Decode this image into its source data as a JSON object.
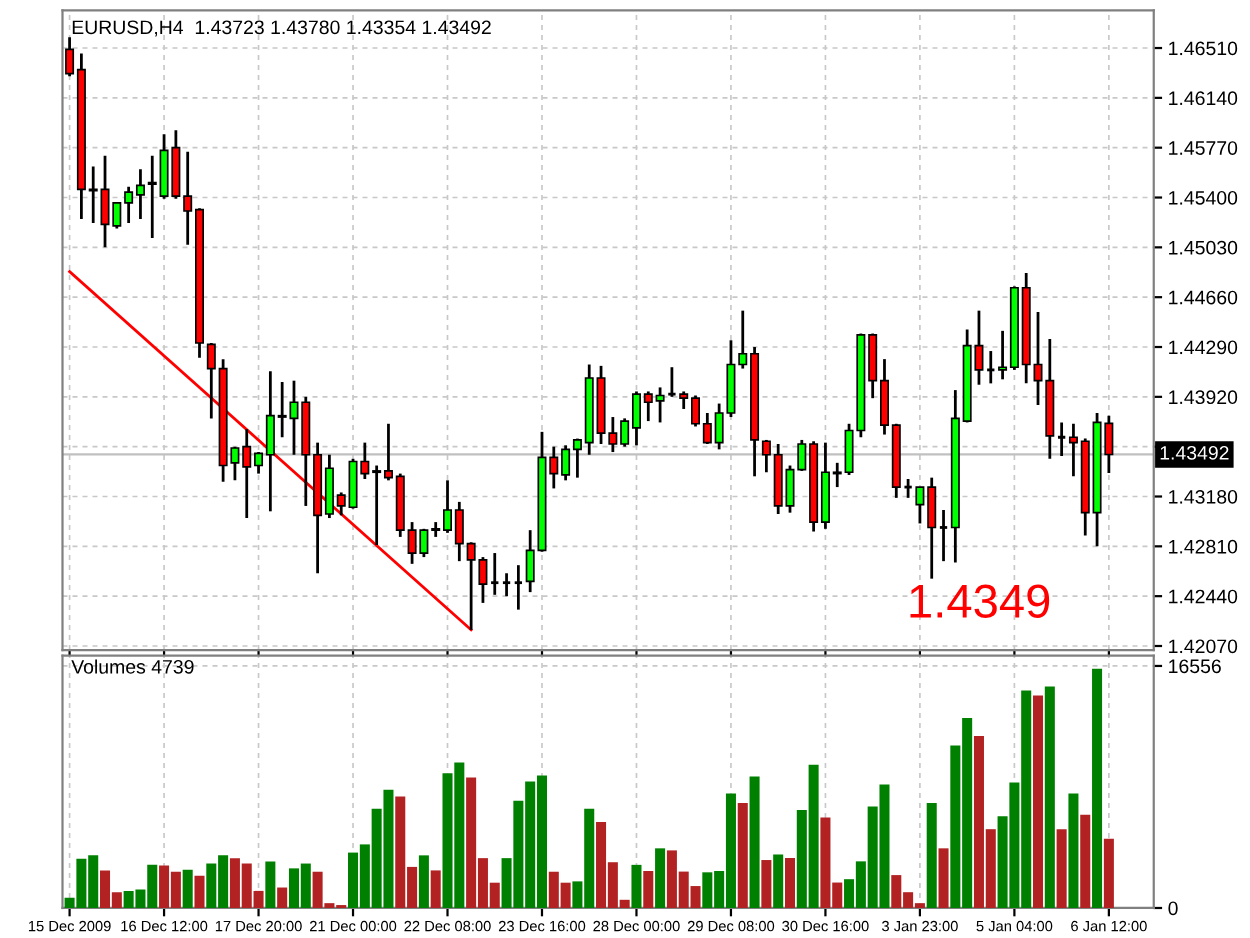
{
  "chart_data": [
    {
      "type": "candlestick",
      "title": "EURUSD,H4  1.43723 1.43780 1.43354 1.43492",
      "categories": [
        null,
        null,
        null,
        null,
        null,
        null,
        null,
        null,
        null,
        null,
        null,
        null,
        null,
        null,
        null,
        null,
        null,
        null,
        null,
        null,
        null,
        null,
        null,
        null,
        null,
        null,
        null,
        null,
        null,
        null,
        null,
        null,
        null,
        null,
        null,
        null,
        null,
        null,
        null,
        null,
        null,
        null,
        null,
        null,
        null,
        null,
        null,
        null,
        null,
        null,
        null,
        null,
        null,
        null,
        null,
        null,
        null,
        null,
        null,
        null,
        null,
        null,
        null,
        null,
        null,
        null,
        null,
        null,
        null,
        null,
        null,
        null,
        null,
        null,
        null,
        null,
        null,
        null,
        null,
        null,
        null,
        null,
        null,
        null,
        null,
        null,
        null,
        null,
        null
      ],
      "ohlc": [
        [
          1.465,
          1.4659,
          1.463,
          1.4632
        ],
        [
          1.4635,
          1.4647,
          1.4524,
          1.4546
        ],
        [
          1.4546,
          1.4563,
          1.4521,
          1.4545
        ],
        [
          1.4546,
          1.4571,
          1.4503,
          1.452
        ],
        [
          1.4519,
          1.4536,
          1.4517,
          1.4536
        ],
        [
          1.4536,
          1.4548,
          1.4521,
          1.4544
        ],
        [
          1.4542,
          1.4561,
          1.4524,
          1.4549
        ],
        [
          1.455,
          1.4571,
          1.451,
          1.4551
        ],
        [
          1.4541,
          1.4587,
          1.4539,
          1.4575
        ],
        [
          1.4577,
          1.459,
          1.4539,
          1.4541
        ],
        [
          1.4541,
          1.4574,
          1.4505,
          1.453
        ],
        [
          1.4531,
          1.4532,
          1.4421,
          1.4432
        ],
        [
          1.4431,
          1.4432,
          1.4376,
          1.4413
        ],
        [
          1.4413,
          1.442,
          1.4329,
          1.4341
        ],
        [
          1.4343,
          1.4355,
          1.433,
          1.4354
        ],
        [
          1.4355,
          1.4368,
          1.4302,
          1.434
        ],
        [
          1.4341,
          1.4351,
          1.4335,
          1.435
        ],
        [
          1.4349,
          1.4411,
          1.4307,
          1.4378
        ],
        [
          1.4377,
          1.4403,
          1.4362,
          1.4378
        ],
        [
          1.4376,
          1.4404,
          1.4349,
          1.4388
        ],
        [
          1.4388,
          1.4392,
          1.4311,
          1.4349
        ],
        [
          1.4349,
          1.4358,
          1.4261,
          1.4304
        ],
        [
          1.4305,
          1.4349,
          1.4302,
          1.4339
        ],
        [
          1.4319,
          1.4321,
          1.4304,
          1.4311
        ],
        [
          1.431,
          1.4346,
          1.4309,
          1.4344
        ],
        [
          1.4344,
          1.4358,
          1.4331,
          1.4335
        ],
        [
          1.4337,
          1.4341,
          1.4282,
          1.4336
        ],
        [
          1.4337,
          1.4372,
          1.433,
          1.4332
        ],
        [
          1.4333,
          1.4335,
          1.4288,
          1.4293
        ],
        [
          1.4293,
          1.4299,
          1.4268,
          1.4276
        ],
        [
          1.4276,
          1.4294,
          1.4273,
          1.4293
        ],
        [
          1.4293,
          1.4299,
          1.4288,
          1.4294
        ],
        [
          1.4293,
          1.433,
          1.4291,
          1.4308
        ],
        [
          1.4308,
          1.4314,
          1.427,
          1.4283
        ],
        [
          1.4283,
          1.4284,
          1.4219,
          1.4271
        ],
        [
          1.4271,
          1.4273,
          1.4239,
          1.4253
        ],
        [
          1.4254,
          1.4276,
          1.4245,
          1.4254
        ],
        [
          1.4254,
          1.4261,
          1.4244,
          1.4254
        ],
        [
          1.4254,
          1.4267,
          1.4234,
          1.4254
        ],
        [
          1.4255,
          1.4293,
          1.4247,
          1.4278
        ],
        [
          1.4278,
          1.4366,
          1.4277,
          1.4347
        ],
        [
          1.4347,
          1.4355,
          1.4324,
          1.4335
        ],
        [
          1.4334,
          1.4356,
          1.433,
          1.4353
        ],
        [
          1.4353,
          1.4361,
          1.4332,
          1.436
        ],
        [
          1.4358,
          1.4416,
          1.4349,
          1.4406
        ],
        [
          1.4406,
          1.4415,
          1.4357,
          1.4365
        ],
        [
          1.4365,
          1.4377,
          1.4351,
          1.4357
        ],
        [
          1.4357,
          1.4376,
          1.4355,
          1.4374
        ],
        [
          1.4369,
          1.4396,
          1.4356,
          1.4394
        ],
        [
          1.4394,
          1.4396,
          1.4374,
          1.4388
        ],
        [
          1.4389,
          1.4399,
          1.4373,
          1.4393
        ],
        [
          1.4394,
          1.4414,
          1.4392,
          1.4394
        ],
        [
          1.4394,
          1.4396,
          1.4383,
          1.4391
        ],
        [
          1.4391,
          1.4393,
          1.437,
          1.4372
        ],
        [
          1.4372,
          1.438,
          1.4357,
          1.4358
        ],
        [
          1.4358,
          1.4387,
          1.4353,
          1.438
        ],
        [
          1.438,
          1.4434,
          1.4377,
          1.4416
        ],
        [
          1.4416,
          1.4456,
          1.4413,
          1.4424
        ],
        [
          1.4424,
          1.4429,
          1.4333,
          1.436
        ],
        [
          1.4359,
          1.436,
          1.4336,
          1.4349
        ],
        [
          1.4349,
          1.4357,
          1.4305,
          1.4311
        ],
        [
          1.4311,
          1.4341,
          1.4306,
          1.4338
        ],
        [
          1.4338,
          1.436,
          1.4337,
          1.4357
        ],
        [
          1.4357,
          1.4359,
          1.4292,
          1.4299
        ],
        [
          1.4299,
          1.4358,
          1.4294,
          1.4336
        ],
        [
          1.4335,
          1.4343,
          1.4325,
          1.4336
        ],
        [
          1.4336,
          1.4372,
          1.4334,
          1.4367
        ],
        [
          1.4367,
          1.4439,
          1.4362,
          1.4438
        ],
        [
          1.4438,
          1.4439,
          1.4391,
          1.4404
        ],
        [
          1.4404,
          1.442,
          1.4364,
          1.4371
        ],
        [
          1.4371,
          1.4372,
          1.4317,
          1.4325
        ],
        [
          1.4325,
          1.4331,
          1.4317,
          1.4325
        ],
        [
          1.4312,
          1.4325,
          1.4298,
          1.4325
        ],
        [
          1.4325,
          1.4332,
          1.4257,
          1.4295
        ],
        [
          1.4295,
          1.4308,
          1.427,
          1.4295
        ],
        [
          1.4295,
          1.4397,
          1.4269,
          1.4376
        ],
        [
          1.4374,
          1.4442,
          1.4373,
          1.443
        ],
        [
          1.443,
          1.4456,
          1.4401,
          1.4412
        ],
        [
          1.4412,
          1.4426,
          1.4402,
          1.4412
        ],
        [
          1.4412,
          1.4441,
          1.4405,
          1.4414
        ],
        [
          1.4414,
          1.4474,
          1.4412,
          1.4473
        ],
        [
          1.4473,
          1.4484,
          1.4402,
          1.4416
        ],
        [
          1.4416,
          1.4455,
          1.4386,
          1.4404
        ],
        [
          1.4404,
          1.4435,
          1.4346,
          1.4363
        ],
        [
          1.4362,
          1.4373,
          1.4348,
          1.4362
        ],
        [
          1.4362,
          1.4372,
          1.4333,
          1.4358
        ],
        [
          1.4359,
          1.4361,
          1.4289,
          1.4306
        ],
        [
          1.4306,
          1.438,
          1.4281,
          1.4373
        ],
        [
          1.43723,
          1.4378,
          1.43354,
          1.43492
        ]
      ],
      "colors": [
        "#ff0000",
        "#ff0000",
        "#ff0000",
        "#ff0000",
        "#00ff00",
        "#00ff00",
        "#00ff00",
        "#00ff00",
        "#00ff00",
        "#ff0000",
        "#ff0000",
        "#ff0000",
        "#ff0000",
        "#ff0000",
        "#00ff00",
        "#ff0000",
        "#00ff00",
        "#00ff00",
        "#00ff00",
        "#00ff00",
        "#ff0000",
        "#ff0000",
        "#00ff00",
        "#ff0000",
        "#00ff00",
        "#ff0000",
        "#ff0000",
        "#ff0000",
        "#ff0000",
        "#ff0000",
        "#00ff00",
        "#00ff00",
        "#00ff00",
        "#ff0000",
        "#ff0000",
        "#ff0000",
        "#000000",
        "#000000",
        "#000000",
        "#00ff00",
        "#00ff00",
        "#ff0000",
        "#00ff00",
        "#00ff00",
        "#00ff00",
        "#ff0000",
        "#ff0000",
        "#00ff00",
        "#00ff00",
        "#ff0000",
        "#00ff00",
        "#000000",
        "#ff0000",
        "#ff0000",
        "#ff0000",
        "#00ff00",
        "#00ff00",
        "#00ff00",
        "#ff0000",
        "#ff0000",
        "#ff0000",
        "#00ff00",
        "#00ff00",
        "#ff0000",
        "#00ff00",
        "#00ff00",
        "#00ff00",
        "#00ff00",
        "#ff0000",
        "#ff0000",
        "#ff0000",
        "#000000",
        "#00ff00",
        "#ff0000",
        "#000000",
        "#00ff00",
        "#00ff00",
        "#ff0000",
        "#000000",
        "#00ff00",
        "#00ff00",
        "#ff0000",
        "#ff0000",
        "#ff0000",
        "#000000",
        "#ff0000",
        "#ff0000",
        "#00ff00",
        "#ff0000"
      ],
      "series": [
        {
          "type": "line",
          "values": [
            1.4485,
            null,
            null,
            null,
            null,
            null,
            null,
            null,
            null,
            null,
            null,
            null,
            null,
            null,
            null,
            null,
            null,
            null,
            null,
            null,
            null,
            null,
            null,
            null,
            null,
            null,
            null,
            null,
            null,
            null,
            null,
            null,
            null,
            null,
            1.4219,
            null,
            null,
            null,
            null,
            null,
            null,
            null,
            null,
            null,
            null,
            null,
            null,
            null,
            null,
            null,
            null,
            null,
            null,
            null,
            null,
            null,
            null,
            null,
            null,
            null,
            null,
            null,
            null,
            null,
            null,
            null,
            null,
            null,
            null,
            null,
            null,
            null,
            null,
            null,
            null,
            null,
            null,
            null,
            null,
            null,
            null,
            null,
            null,
            null,
            null,
            null,
            null,
            null,
            null
          ],
          "color": "#ff0000"
        }
      ],
      "ylim": [
        1.4204,
        1.4679
      ],
      "yticks": [
        {
          "value": 1.4207,
          "label": "1.42070"
        },
        {
          "value": 1.4244,
          "label": "1.42440"
        },
        {
          "value": 1.4281,
          "label": "1.42810"
        },
        {
          "value": 1.4318,
          "label": "1.43180"
        },
        {
          "value": 1.4355,
          "label": null
        },
        {
          "value": 1.4392,
          "label": "1.43920"
        },
        {
          "value": 1.4429,
          "label": "1.44290"
        },
        {
          "value": 1.4466,
          "label": "1.44660"
        },
        {
          "value": 1.4503,
          "label": "1.45030"
        },
        {
          "value": 1.454,
          "label": "1.45400"
        },
        {
          "value": 1.4577,
          "label": "1.45770"
        },
        {
          "value": 1.4614,
          "label": "1.46140"
        },
        {
          "value": 1.4651,
          "label": "1.46510"
        }
      ],
      "ref_lines": [
        {
          "axis": "y",
          "value": 1.43492,
          "label": "1.43492",
          "color": "#c0c0c0"
        }
      ],
      "annotations": [
        "1.4349"
      ],
      "grid": true,
      "tick_labels": "y"
    },
    {
      "type": "bar",
      "title": "Volumes 4739",
      "categories": [
        "15 Dec 2009",
        null,
        null,
        null,
        null,
        null,
        null,
        null,
        "16 Dec 12:00",
        null,
        null,
        null,
        null,
        null,
        null,
        null,
        "17 Dec 20:00",
        null,
        null,
        null,
        null,
        null,
        null,
        null,
        "21 Dec 00:00",
        null,
        null,
        null,
        null,
        null,
        null,
        null,
        "22 Dec 08:00",
        null,
        null,
        null,
        null,
        null,
        null,
        null,
        "23 Dec 16:00",
        null,
        null,
        null,
        null,
        null,
        null,
        null,
        "28 Dec 00:00",
        null,
        null,
        null,
        null,
        null,
        null,
        null,
        "29 Dec 08:00",
        null,
        null,
        null,
        null,
        null,
        null,
        null,
        "30 Dec 16:00",
        null,
        null,
        null,
        null,
        null,
        null,
        null,
        "3 Jan 23:00",
        null,
        null,
        null,
        null,
        null,
        null,
        null,
        "5 Jan 04:00",
        null,
        null,
        null,
        null,
        null,
        null,
        null,
        "6 Jan 12:00"
      ],
      "values": [
        700,
        3370,
        3600,
        2570,
        1080,
        1170,
        1260,
        2950,
        2900,
        2480,
        2620,
        2200,
        3040,
        3600,
        3410,
        3040,
        1170,
        3180,
        1400,
        2710,
        3040,
        2480,
        330,
        200,
        3790,
        4350,
        6780,
        8090,
        7620,
        2810,
        3600,
        2570,
        9210,
        9960,
        8930,
        3410,
        1730,
        3410,
        7340,
        8650,
        9070,
        2480,
        1730,
        1820,
        6780,
        5890,
        3130,
        560,
        2950,
        2530,
        4080,
        3940,
        2490,
        1500,
        2440,
        2530,
        7830,
        7180,
        9000,
        3280,
        3660,
        3420,
        6710,
        9800,
        6190,
        1740,
        1970,
        3190,
        6940,
        8440,
        2250,
        1080,
        330,
        7180,
        4080,
        11120,
        12990,
        11770,
        5390,
        6280,
        8580,
        14870,
        14540,
        15150,
        5390,
        7830,
        6380,
        16370,
        4739
      ],
      "colors": [
        "#008000",
        "#008000",
        "#008000",
        "#b22222",
        "#b22222",
        "#008000",
        "#008000",
        "#008000",
        "#b22222",
        "#b22222",
        "#008000",
        "#b22222",
        "#008000",
        "#008000",
        "#b22222",
        "#b22222",
        "#b22222",
        "#008000",
        "#b22222",
        "#008000",
        "#008000",
        "#b22222",
        "#b22222",
        "#b22222",
        "#008000",
        "#008000",
        "#008000",
        "#008000",
        "#b22222",
        "#b22222",
        "#008000",
        "#b22222",
        "#008000",
        "#008000",
        "#b22222",
        "#b22222",
        "#b22222",
        "#008000",
        "#008000",
        "#008000",
        "#008000",
        "#b22222",
        "#b22222",
        "#008000",
        "#008000",
        "#b22222",
        "#b22222",
        "#b22222",
        "#008000",
        "#b22222",
        "#008000",
        "#b22222",
        "#b22222",
        "#b22222",
        "#008000",
        "#008000",
        "#008000",
        "#b22222",
        "#008000",
        "#b22222",
        "#008000",
        "#b22222",
        "#008000",
        "#008000",
        "#b22222",
        "#b22222",
        "#008000",
        "#008000",
        "#008000",
        "#008000",
        "#b22222",
        "#b22222",
        "#b22222",
        "#008000",
        "#b22222",
        "#008000",
        "#008000",
        "#b22222",
        "#b22222",
        "#008000",
        "#008000",
        "#008000",
        "#b22222",
        "#008000",
        "#b22222",
        "#008000",
        "#b22222",
        "#008000",
        "#b22222"
      ],
      "ylim": [
        0,
        17260
      ],
      "yticks": [
        0,
        16556
      ],
      "grid": true
    }
  ]
}
